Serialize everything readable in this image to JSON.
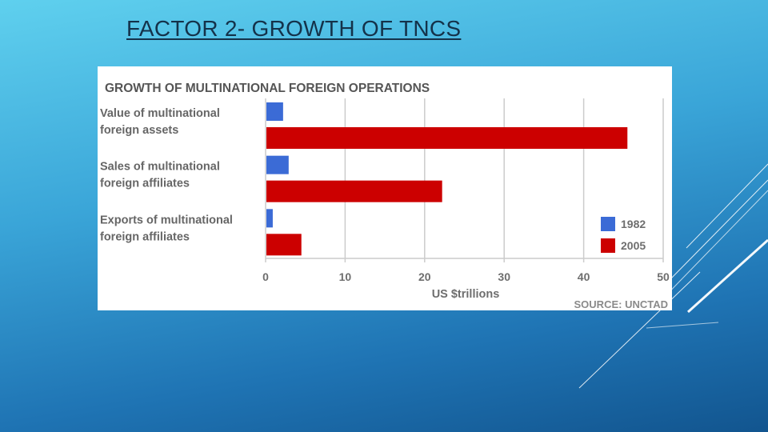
{
  "slide": {
    "title": "FACTOR 2- GROWTH OF TNCS"
  },
  "colors": {
    "series_1982": "#3b6bd6",
    "series_2005": "#cc0000",
    "grid": "#cccccc",
    "text": "#666666"
  },
  "chart_data": {
    "type": "bar",
    "orientation": "horizontal",
    "title": "GROWTH OF MULTINATIONAL FOREIGN OPERATIONS",
    "categories": [
      [
        "Value of multinational",
        "foreign assets"
      ],
      [
        "Sales of multinational",
        "foreign affiliates"
      ],
      [
        "Exports of multinational",
        "foreign affiliates"
      ]
    ],
    "series": [
      {
        "name": "1982",
        "color": "#3b6bd6",
        "values": [
          2.2,
          2.9,
          0.9
        ]
      },
      {
        "name": "2005",
        "color": "#cc0000",
        "values": [
          45.5,
          22.2,
          4.5
        ]
      }
    ],
    "xlabel": "US $trillions",
    "xlim": [
      0,
      50
    ],
    "xticks": [
      "0",
      "10",
      "20",
      "30",
      "40",
      "50"
    ],
    "grid": true,
    "legend_position": "bottom-right",
    "source": "SOURCE: UNCTAD"
  }
}
